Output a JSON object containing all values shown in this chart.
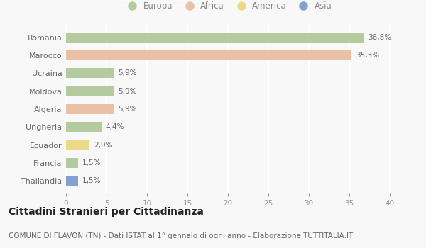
{
  "countries": [
    "Romania",
    "Marocco",
    "Ucraina",
    "Moldova",
    "Algeria",
    "Ungheria",
    "Ecuador",
    "Francia",
    "Thailandia"
  ],
  "values": [
    36.8,
    35.3,
    5.9,
    5.9,
    5.9,
    4.4,
    2.9,
    1.5,
    1.5
  ],
  "labels": [
    "36,8%",
    "35,3%",
    "5,9%",
    "5,9%",
    "5,9%",
    "4,4%",
    "2,9%",
    "1,5%",
    "1,5%"
  ],
  "continents": [
    "Europa",
    "Africa",
    "Europa",
    "Europa",
    "Africa",
    "Europa",
    "America",
    "Europa",
    "Asia"
  ],
  "colors": {
    "Europa": "#a8c490",
    "Africa": "#e8b896",
    "America": "#e8d472",
    "Asia": "#7090cc"
  },
  "legend_order": [
    "Europa",
    "Africa",
    "America",
    "Asia"
  ],
  "xlim": [
    0,
    40
  ],
  "xticks": [
    0,
    5,
    10,
    15,
    20,
    25,
    30,
    35,
    40
  ],
  "title": "Cittadini Stranieri per Cittadinanza",
  "subtitle": "COMUNE DI FLAVON (TN) - Dati ISTAT al 1° gennaio di ogni anno - Elaborazione TUTTITALIA.IT",
  "title_fontsize": 10,
  "subtitle_fontsize": 7.5,
  "bg_color": "#f8f8f8",
  "grid_color": "#ffffff",
  "bar_alpha": 0.85
}
